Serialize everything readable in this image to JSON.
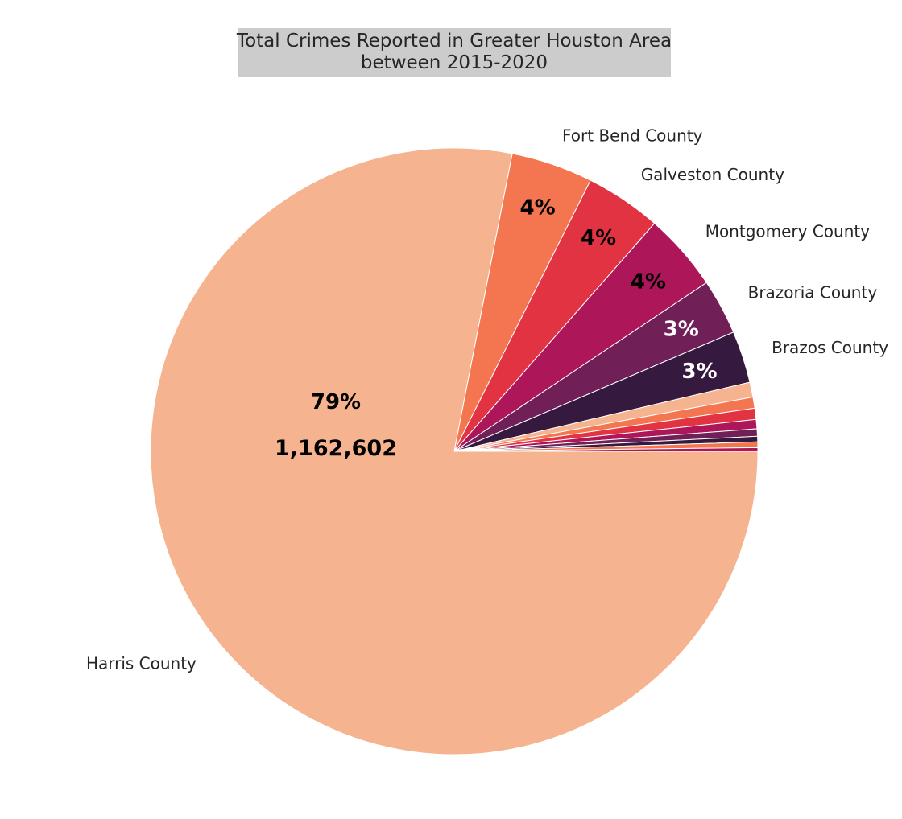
{
  "chart_data": {
    "type": "pie",
    "title": "Total Crimes Reported in Greater Houston Area\nbetween 2015-2020",
    "title_lines": [
      "Total Crimes Reported in Greater Houston Area",
      "between 2015-2020"
    ],
    "title_background": "#cccccc",
    "categories": [
      "Harris County",
      "Fort Bend County",
      "Galveston County",
      "Montgomery County",
      "Brazoria County",
      "Brazos County",
      "",
      "",
      "",
      "",
      "",
      "",
      "",
      ""
    ],
    "percent": [
      79.0,
      4.4,
      4.1,
      4.2,
      3.0,
      2.8,
      0.8,
      0.6,
      0.6,
      0.5,
      0.4,
      0.3,
      0.3,
      0.2
    ],
    "percent_labels": [
      "79%",
      "4%",
      "4%",
      "4%",
      "3%",
      "3%",
      "",
      "",
      "",
      "",
      "",
      "",
      "",
      ""
    ],
    "value_labels": [
      "1,162,602",
      "",
      "",
      "",
      "",
      "",
      "",
      "",
      "",
      "",
      "",
      "",
      "",
      ""
    ],
    "colors": [
      "#f5b38f",
      "#f37651",
      "#e13342",
      "#ad1759",
      "#701f57",
      "#35193e",
      "#f5b38f",
      "#f37651",
      "#e13342",
      "#ad1759",
      "#701f57",
      "#35193e",
      "#f37651",
      "#ad1759"
    ],
    "pct_label_colors": [
      "#000000",
      "#000000",
      "#000000",
      "#000000",
      "#ffffff",
      "#ffffff",
      "",
      "",
      "",
      "",
      "",
      "",
      "",
      ""
    ],
    "start_angle": "clockwise from 3 o'clock",
    "legend": "none"
  }
}
